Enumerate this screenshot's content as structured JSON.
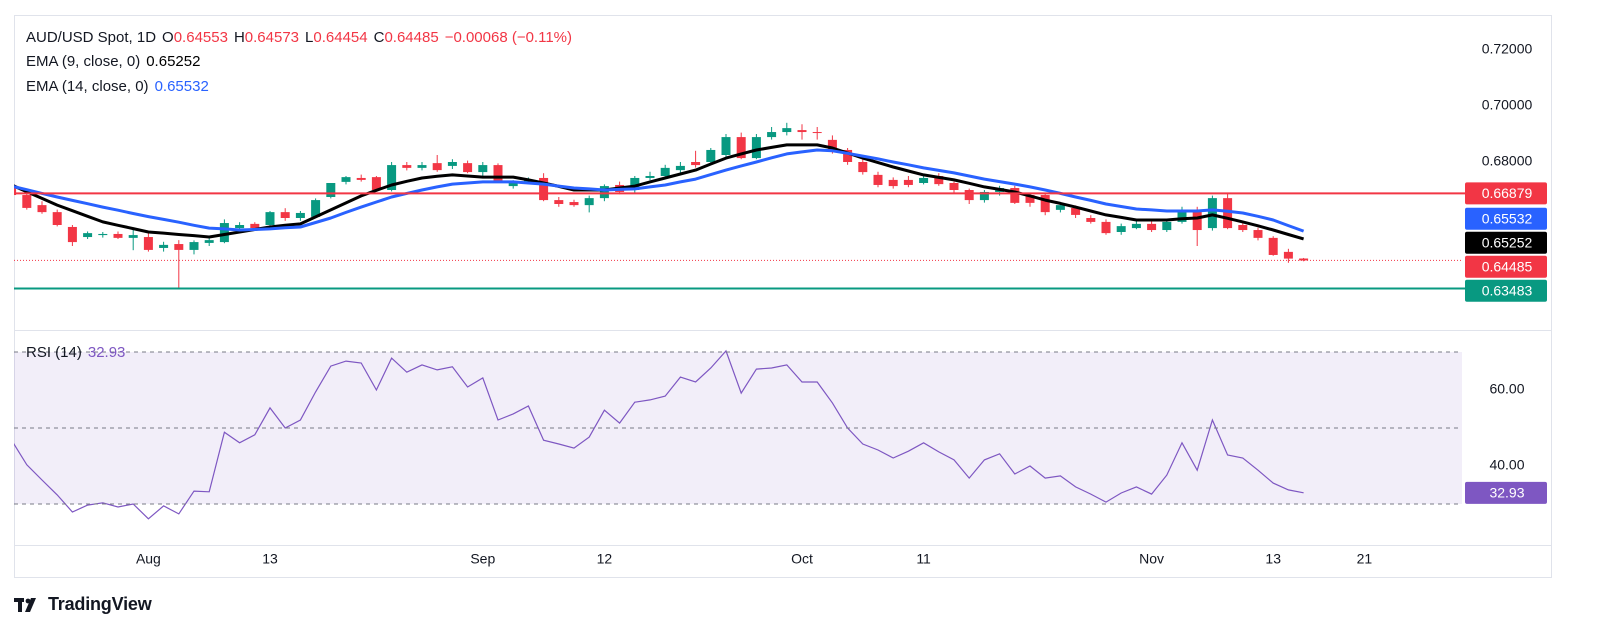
{
  "brand": "TradingView",
  "chart_data": [
    {
      "type": "candlestick",
      "title": "AUD/USD Spot, 1D",
      "ohlc_labels": [
        "O",
        "H",
        "L",
        "C"
      ],
      "change": "−0.00068 (−0.11%)",
      "up_color": "#089981",
      "down_color": "#f23645",
      "categories": [
        null,
        null,
        null,
        null,
        null,
        null,
        null,
        null,
        null,
        "Aug",
        null,
        null,
        null,
        null,
        null,
        null,
        null,
        "13",
        null,
        null,
        null,
        null,
        null,
        null,
        null,
        null,
        null,
        null,
        null,
        null,
        null,
        "Sep",
        null,
        null,
        null,
        null,
        null,
        null,
        null,
        "12",
        null,
        null,
        null,
        null,
        null,
        null,
        null,
        null,
        null,
        null,
        null,
        null,
        "Oct",
        null,
        null,
        null,
        null,
        null,
        null,
        null,
        "11",
        null,
        null,
        null,
        null,
        null,
        null,
        null,
        null,
        null,
        null,
        null,
        null,
        null,
        null,
        "Nov",
        null,
        null,
        null,
        null,
        null,
        null,
        null,
        "13",
        null,
        null,
        null,
        null,
        null,
        "21"
      ],
      "open": [
        0.6718,
        0.6682,
        0.6646,
        0.6621,
        0.6568,
        0.6532,
        0.6539,
        0.6543,
        0.6529,
        0.6532,
        0.6493,
        0.6507,
        0.6486,
        0.6511,
        0.6514,
        0.6564,
        0.6579,
        0.6575,
        0.6621,
        0.66,
        0.6604,
        0.6675,
        0.6729,
        0.6743,
        0.6746,
        0.67,
        0.6789,
        0.6779,
        0.6796,
        0.6786,
        0.6796,
        0.6764,
        0.6789,
        0.6714,
        0.6729,
        0.6743,
        0.6664,
        0.6657,
        0.6646,
        0.6671,
        0.6718,
        0.67,
        0.6743,
        0.675,
        0.6771,
        0.68,
        0.68,
        0.6825,
        0.6889,
        0.6814,
        0.6889,
        0.6907,
        0.6914,
        0.6907,
        0.6879,
        0.6843,
        0.68,
        0.6754,
        0.6736,
        0.6736,
        0.6725,
        0.675,
        0.6725,
        0.67,
        0.6664,
        0.6693,
        0.6707,
        0.6682,
        0.6682,
        0.6629,
        0.6636,
        0.66,
        0.6586,
        0.655,
        0.6564,
        0.6579,
        0.6557,
        0.6586,
        0.6629,
        0.6564,
        0.6671,
        0.6575,
        0.6557,
        0.6529,
        0.6479,
        0.64553,
        null,
        null,
        null,
        null
      ],
      "high": [
        0.673,
        0.669,
        0.666,
        0.663,
        0.6575,
        0.6552,
        0.655,
        0.6552,
        0.656,
        0.6545,
        0.6515,
        0.6521,
        0.652,
        0.653,
        0.6595,
        0.6585,
        0.6585,
        0.6625,
        0.6635,
        0.6625,
        0.667,
        0.6725,
        0.675,
        0.6755,
        0.675,
        0.68,
        0.68,
        0.68,
        0.6825,
        0.681,
        0.6805,
        0.68,
        0.6795,
        0.6735,
        0.6745,
        0.676,
        0.6675,
        0.6665,
        0.668,
        0.672,
        0.673,
        0.675,
        0.6765,
        0.679,
        0.68,
        0.684,
        0.685,
        0.69,
        0.6905,
        0.69,
        0.6925,
        0.694,
        0.6935,
        0.6925,
        0.6895,
        0.685,
        0.681,
        0.6765,
        0.6745,
        0.675,
        0.6755,
        0.676,
        0.673,
        0.6705,
        0.67,
        0.6715,
        0.6715,
        0.669,
        0.669,
        0.665,
        0.6645,
        0.661,
        0.6595,
        0.658,
        0.659,
        0.659,
        0.6595,
        0.664,
        0.664,
        0.668,
        0.6688,
        0.659,
        0.6565,
        0.6535,
        0.649,
        0.64573,
        null,
        null,
        null,
        null
      ],
      "low": [
        0.6675,
        0.663,
        0.6615,
        0.657,
        0.65,
        0.6525,
        0.653,
        0.6525,
        0.6485,
        0.648,
        0.648,
        0.6348,
        0.647,
        0.65,
        0.651,
        0.6555,
        0.6555,
        0.6565,
        0.659,
        0.659,
        0.66,
        0.667,
        0.672,
        0.673,
        0.6695,
        0.6695,
        0.677,
        0.677,
        0.6765,
        0.6775,
        0.676,
        0.675,
        0.6725,
        0.6705,
        0.672,
        0.666,
        0.664,
        0.664,
        0.662,
        0.666,
        0.6685,
        0.669,
        0.6735,
        0.674,
        0.676,
        0.678,
        0.679,
        0.6815,
        0.681,
        0.681,
        0.688,
        0.6895,
        0.688,
        0.688,
        0.683,
        0.679,
        0.6755,
        0.671,
        0.6705,
        0.671,
        0.672,
        0.6715,
        0.669,
        0.665,
        0.6655,
        0.668,
        0.665,
        0.664,
        0.661,
        0.662,
        0.66,
        0.658,
        0.654,
        0.654,
        0.656,
        0.655,
        0.655,
        0.658,
        0.65,
        0.6555,
        0.656,
        0.655,
        0.652,
        0.6465,
        0.644,
        0.64454,
        null,
        null,
        null,
        null
      ],
      "close": [
        0.6682,
        0.6636,
        0.6621,
        0.6575,
        0.6514,
        0.6546,
        0.6543,
        0.6529,
        0.6539,
        0.6486,
        0.6504,
        0.6486,
        0.6514,
        0.6521,
        0.6582,
        0.6575,
        0.6564,
        0.6621,
        0.66,
        0.6618,
        0.6664,
        0.6725,
        0.6746,
        0.6736,
        0.67,
        0.6789,
        0.6779,
        0.6789,
        0.6771,
        0.68,
        0.6764,
        0.6789,
        0.6729,
        0.6729,
        0.6736,
        0.6664,
        0.665,
        0.6646,
        0.6671,
        0.6714,
        0.6693,
        0.6743,
        0.675,
        0.6779,
        0.6786,
        0.6789,
        0.6843,
        0.6889,
        0.6814,
        0.6889,
        0.6907,
        0.6921,
        0.6907,
        0.6904,
        0.6836,
        0.68,
        0.6764,
        0.6718,
        0.6714,
        0.6718,
        0.6743,
        0.6721,
        0.67,
        0.6664,
        0.6693,
        0.6707,
        0.6654,
        0.6654,
        0.6621,
        0.6646,
        0.6611,
        0.6586,
        0.6546,
        0.6571,
        0.6579,
        0.6557,
        0.6586,
        0.6629,
        0.6557,
        0.6671,
        0.6564,
        0.6557,
        0.6529,
        0.6468,
        0.6455,
        0.64485,
        null,
        null,
        null,
        null
      ],
      "series": [
        {
          "name": "EMA (9, close, 0)",
          "color": "#000000",
          "values": [
            0.6718,
            0.6694,
            0.667,
            0.6646,
            0.6626,
            0.6606,
            0.6586,
            0.6574,
            0.6562,
            0.655,
            0.6546,
            0.6541,
            0.6537,
            0.6532,
            0.6541,
            0.655,
            0.6559,
            0.6568,
            0.6574,
            0.6579,
            0.6604,
            0.6629,
            0.6654,
            0.6679,
            0.6699,
            0.6718,
            0.6731,
            0.6743,
            0.6749,
            0.6754,
            0.675,
            0.6746,
            0.6746,
            0.6746,
            0.6736,
            0.6725,
            0.6713,
            0.67,
            0.67,
            0.67,
            0.6707,
            0.6714,
            0.6729,
            0.6743,
            0.6757,
            0.6771,
            0.6793,
            0.6814,
            0.6829,
            0.6843,
            0.6852,
            0.6861,
            0.6861,
            0.6861,
            0.685,
            0.6832,
            0.6814,
            0.6798,
            0.6782,
            0.6768,
            0.6754,
            0.6745,
            0.6736,
            0.6724,
            0.6711,
            0.6702,
            0.6693,
            0.6679,
            0.6664,
            0.6652,
            0.6639,
            0.6625,
            0.6611,
            0.6602,
            0.6593,
            0.6593,
            0.6593,
            0.6597,
            0.66,
            0.6611,
            0.6599,
            0.6586,
            0.6572,
            0.6557,
            0.6541,
            0.65252,
            null,
            null,
            null,
            null
          ]
        },
        {
          "name": "EMA (14, close, 0)",
          "color": "#2962ff",
          "values": [
            0.6714,
            0.6701,
            0.6688,
            0.6675,
            0.6663,
            0.6651,
            0.6639,
            0.6628,
            0.6616,
            0.6605,
            0.6595,
            0.6585,
            0.6574,
            0.6564,
            0.6561,
            0.6557,
            0.6559,
            0.6561,
            0.6565,
            0.6568,
            0.6584,
            0.66,
            0.662,
            0.6639,
            0.6657,
            0.6675,
            0.6688,
            0.67,
            0.6711,
            0.6721,
            0.6725,
            0.6729,
            0.6729,
            0.6729,
            0.6725,
            0.6721,
            0.6714,
            0.6707,
            0.6704,
            0.67,
            0.6702,
            0.6704,
            0.6711,
            0.6718,
            0.6729,
            0.6739,
            0.6755,
            0.6771,
            0.6786,
            0.68,
            0.6815,
            0.6829,
            0.6836,
            0.6843,
            0.684,
            0.6831,
            0.6821,
            0.6811,
            0.68,
            0.679,
            0.6779,
            0.677,
            0.6761,
            0.675,
            0.6739,
            0.673,
            0.6721,
            0.6711,
            0.67,
            0.6688,
            0.6675,
            0.6663,
            0.665,
            0.6641,
            0.6632,
            0.6629,
            0.6625,
            0.6625,
            0.6625,
            0.6629,
            0.6624,
            0.6618,
            0.6606,
            0.6593,
            0.6573,
            0.65532,
            null,
            null,
            null,
            null
          ]
        }
      ],
      "hlines": [
        {
          "value": 0.66879,
          "color": "#f23645"
        },
        {
          "value": 0.63483,
          "color": "#089981"
        }
      ],
      "ylim": [
        0.62,
        0.7325
      ],
      "yticks": [
        {
          "value": 0.72,
          "label": "0.72000"
        },
        {
          "value": 0.7,
          "label": "0.70000"
        },
        {
          "value": 0.68,
          "label": "0.68000"
        }
      ],
      "grid": false
    },
    {
      "type": "line",
      "name": "RSI (14)",
      "color": "#7e57c2",
      "values": [
        46.8,
        40.3,
        36.3,
        32.4,
        27.9,
        29.7,
        30.3,
        29.2,
        30,
        26.1,
        29.5,
        27.4,
        33.4,
        33.2,
        48.9,
        46.1,
        48.2,
        55.3,
        50,
        52.1,
        59.5,
        66.3,
        67.6,
        67.1,
        60,
        68.4,
        64.7,
        66.6,
        65.3,
        66.1,
        60.8,
        63.2,
        52.1,
        53.7,
        55.8,
        46.8,
        45.8,
        44.7,
        47.6,
        54.7,
        51.3,
        56.8,
        57.4,
        58.4,
        63.4,
        62.1,
        65.8,
        70.3,
        59.2,
        65.5,
        65.8,
        66.6,
        62.1,
        62.1,
        56.6,
        50,
        45.8,
        44.2,
        42.1,
        43.9,
        46.1,
        43.7,
        41.6,
        36.8,
        41.6,
        43.2,
        37.9,
        40,
        36.8,
        37.4,
        34.5,
        32.6,
        30.5,
        32.9,
        34.5,
        32.6,
        37.6,
        46.1,
        38.9,
        52.1,
        42.9,
        42.1,
        38.9,
        35.5,
        33.7,
        32.93,
        null,
        null,
        null,
        null
      ],
      "bands": [
        30,
        50,
        70
      ],
      "ylim": [
        19.2,
        75.8
      ],
      "yticks": [
        {
          "value": 60,
          "label": "60.00"
        },
        {
          "value": 40,
          "label": "40.00"
        }
      ],
      "grid": false
    }
  ]
}
